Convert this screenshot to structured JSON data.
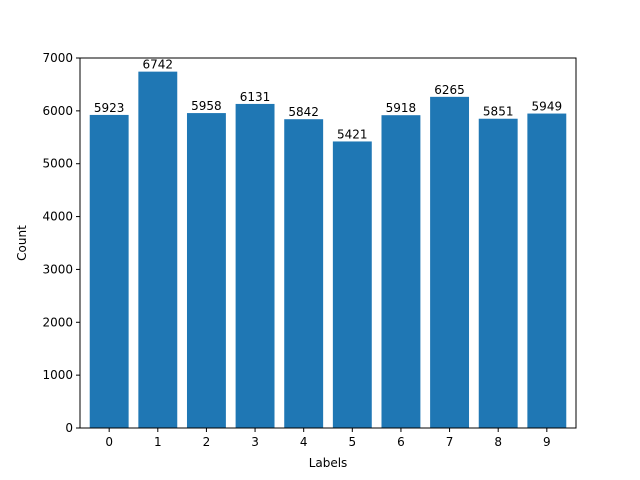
{
  "chart_data": {
    "type": "bar",
    "categories": [
      "0",
      "1",
      "2",
      "3",
      "4",
      "5",
      "6",
      "7",
      "8",
      "9"
    ],
    "values": [
      5923,
      6742,
      5958,
      6131,
      5842,
      5421,
      5918,
      6265,
      5851,
      5949
    ],
    "data_labels": [
      "5923",
      "6742",
      "5958",
      "6131",
      "5842",
      "5421",
      "5918",
      "6265",
      "5851",
      "5949"
    ],
    "xlabel": "Labels",
    "ylabel": "Count",
    "ylim": [
      0,
      7000
    ],
    "yticks": [
      0,
      1000,
      2000,
      3000,
      4000,
      5000,
      6000,
      7000
    ],
    "ytick_labels": [
      "0",
      "1000",
      "2000",
      "3000",
      "4000",
      "5000",
      "6000",
      "7000"
    ],
    "grid": false,
    "bar_color": "#1f77b4"
  }
}
